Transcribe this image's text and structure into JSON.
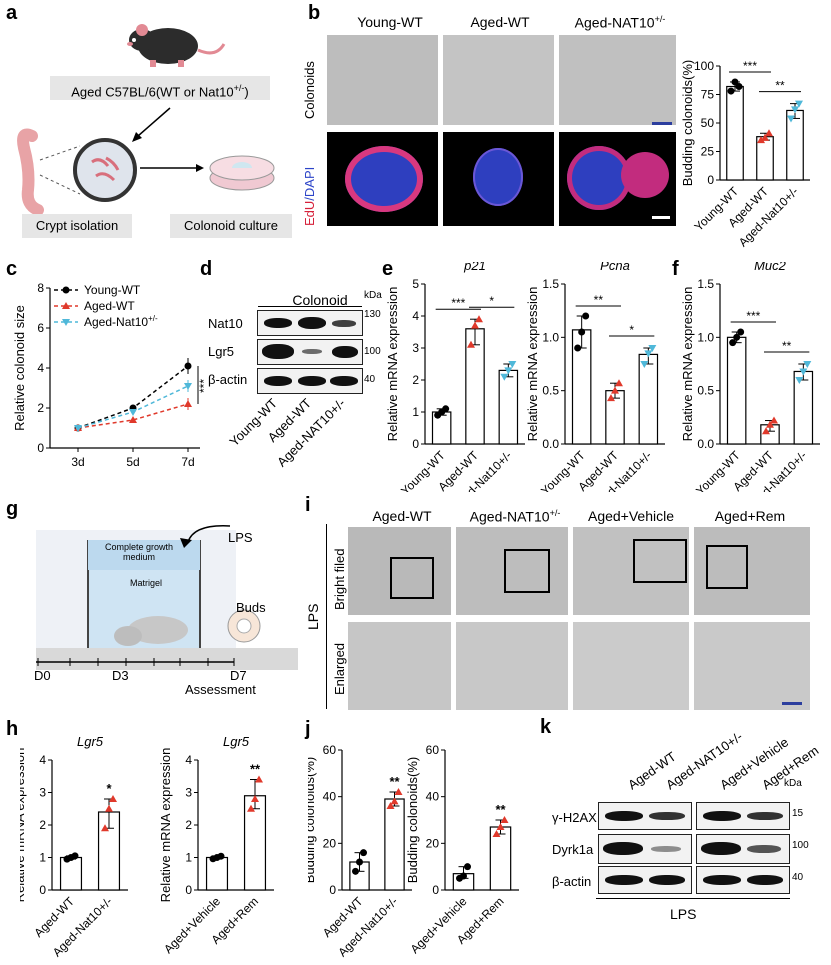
{
  "panels": {
    "a": {
      "letter": "a",
      "mouse_label": "Aged C57BL/6(WT or Nat10",
      "mouse_label_sup": "+/-",
      "mouse_label_end": ")",
      "crypt_label": "Crypt isolation",
      "culture_label": "Colonoid  culture"
    },
    "b": {
      "letter": "b",
      "cols": [
        "Young-WT",
        "Aged-WT",
        "Aged-NAT10"
      ],
      "col3_sup": "+/-",
      "row1": "Colonoids",
      "row2_edu": "EdU",
      "row2_dapi": "/DAPI"
    },
    "c": {
      "letter": "c"
    },
    "d": {
      "letter": "d",
      "header": "Colonoid",
      "kda": "kDa",
      "proteins": [
        "Nat10",
        "Lgr5",
        "β-actin"
      ],
      "markers": [
        "130",
        "100",
        "40"
      ],
      "lanes": [
        "Young-WT",
        "Aged-WT",
        "Aged-NAT10+/-"
      ]
    },
    "e": {
      "letter": "e"
    },
    "f": {
      "letter": "f"
    },
    "g": {
      "letter": "g",
      "lps": "LPS",
      "medium": "Complete growth medium",
      "matrigel": "Matrigel",
      "buds": "Buds",
      "d0": "D0",
      "d3": "D3",
      "d7": "D7",
      "assessment": "Assessment"
    },
    "i": {
      "letter": "i",
      "cols": [
        "Aged-WT",
        "Aged-NAT10",
        "Aged+Vehicle",
        "Aged+Rem"
      ],
      "col2_sup": "+/-",
      "row1": "Bright filed",
      "row2": "Enlarged",
      "side": "LPS"
    },
    "h": {
      "letter": "h"
    },
    "j": {
      "letter": "j"
    },
    "k": {
      "letter": "k",
      "lanes_left": [
        "Aged-WT",
        "Aged-NAT10+/-"
      ],
      "lanes_right": [
        "Aged+Vehicle",
        "Aged+Rem"
      ],
      "proteins": [
        "γ-H2AX",
        "Dyrk1a",
        "β-actin"
      ],
      "markers": [
        "15",
        "100",
        "40"
      ],
      "kda": "kDa",
      "footer": "LPS"
    }
  },
  "chart_data": [
    {
      "id": "b-bar",
      "type": "bar",
      "categories": [
        "Young-WT",
        "Aged-WT",
        "Aged-Nat10+/-"
      ],
      "values": [
        82,
        38,
        61
      ],
      "points": [
        [
          78,
          86,
          82
        ],
        [
          35,
          37,
          41
        ],
        [
          54,
          62,
          67
        ]
      ],
      "ylabel": "Budding colonoids(%)",
      "ylim": [
        0,
        100
      ],
      "yticks": [
        0,
        25,
        50,
        75,
        100
      ],
      "sig": [
        {
          "from": 0,
          "to": 1,
          "label": "***"
        },
        {
          "from": 1,
          "to": 2,
          "label": "**"
        }
      ],
      "colors": [
        "#000000",
        "#e0392b",
        "#4fb8d9"
      ]
    },
    {
      "id": "c-line",
      "type": "line",
      "x": [
        "3d",
        "5d",
        "7d"
      ],
      "ylabel": "Relative colonoid size",
      "ylim": [
        0,
        8
      ],
      "yticks": [
        0,
        2,
        4,
        6,
        8
      ],
      "series": [
        {
          "name": "Young-WT",
          "values": [
            1.0,
            2.0,
            4.1
          ],
          "err": [
            0.1,
            0.1,
            0.4
          ],
          "color": "#000000",
          "marker": "circle"
        },
        {
          "name": "Aged-WT",
          "values": [
            1.0,
            1.4,
            2.2
          ],
          "err": [
            0.1,
            0.1,
            0.3
          ],
          "color": "#e0392b",
          "marker": "triangle"
        },
        {
          "name": "Aged-Nat10",
          "name_sup": "+/-",
          "values": [
            1.0,
            1.8,
            3.1
          ],
          "err": [
            0.1,
            0.1,
            0.3
          ],
          "color": "#4fb8d9",
          "marker": "triangle-down"
        }
      ],
      "annotation": "***"
    },
    {
      "id": "e-p21",
      "type": "bar",
      "title": "p21",
      "categories": [
        "Young-WT",
        "Aged-WT",
        "Aged-Nat10+/-"
      ],
      "values": [
        1.0,
        3.6,
        2.3
      ],
      "points": [
        [
          0.9,
          1.0,
          1.1
        ],
        [
          3.1,
          3.7,
          3.9
        ],
        [
          2.1,
          2.3,
          2.5
        ]
      ],
      "ylabel": "Relative mRNA expression",
      "ylim": [
        0,
        5
      ],
      "yticks": [
        0,
        1,
        2,
        3,
        4,
        5
      ],
      "sig": [
        {
          "from": 0,
          "to": 1,
          "label": "***"
        },
        {
          "from": 1,
          "to": 2,
          "label": "*"
        }
      ],
      "colors": [
        "#000000",
        "#e0392b",
        "#4fb8d9"
      ]
    },
    {
      "id": "e-pcna",
      "type": "bar",
      "title": "Pcna",
      "categories": [
        "Young-WT",
        "Aged-WT",
        "Aged-Nat10+/-"
      ],
      "values": [
        1.07,
        0.5,
        0.84
      ],
      "points": [
        [
          0.9,
          1.05,
          1.2
        ],
        [
          0.43,
          0.5,
          0.57
        ],
        [
          0.75,
          0.85,
          0.9
        ]
      ],
      "ylabel": "Relative mRNA expression",
      "ylim": [
        0,
        1.5
      ],
      "yticks": [
        0.0,
        0.5,
        1.0,
        1.5
      ],
      "sig": [
        {
          "from": 0,
          "to": 1,
          "label": "**"
        },
        {
          "from": 1,
          "to": 2,
          "label": "*"
        }
      ],
      "colors": [
        "#000000",
        "#e0392b",
        "#4fb8d9"
      ]
    },
    {
      "id": "f-muc2",
      "type": "bar",
      "title": "Muc2",
      "categories": [
        "Young-WT",
        "Aged-WT",
        "Aged-Nat10+/-"
      ],
      "values": [
        1.0,
        0.18,
        0.68
      ],
      "points": [
        [
          0.95,
          1.0,
          1.05
        ],
        [
          0.12,
          0.18,
          0.22
        ],
        [
          0.6,
          0.68,
          0.75
        ]
      ],
      "ylabel": "Relative mRNA expression",
      "ylim": [
        0,
        1.5
      ],
      "yticks": [
        0.0,
        0.5,
        1.0,
        1.5
      ],
      "sig": [
        {
          "from": 0,
          "to": 1,
          "label": "***"
        },
        {
          "from": 1,
          "to": 2,
          "label": "**"
        }
      ],
      "colors": [
        "#000000",
        "#e0392b",
        "#4fb8d9"
      ]
    },
    {
      "id": "h-lgr5-a",
      "type": "bar",
      "title": "Lgr5",
      "categories": [
        "Aged-WT",
        "Aged-Nat10+/-"
      ],
      "values": [
        1.0,
        2.4
      ],
      "points": [
        [
          0.95,
          1.0,
          1.05
        ],
        [
          1.9,
          2.5,
          2.8
        ]
      ],
      "ylabel": "Relative mRNA expression",
      "ylim": [
        0,
        4
      ],
      "yticks": [
        0,
        1,
        2,
        3,
        4
      ],
      "sig_above": [
        null,
        "*"
      ],
      "colors": [
        "#000000",
        "#e0392b"
      ]
    },
    {
      "id": "h-lgr5-b",
      "type": "bar",
      "title": "Lgr5",
      "categories": [
        "Aged+Vehicle",
        "Aged+Rem"
      ],
      "values": [
        1.0,
        2.9
      ],
      "points": [
        [
          0.96,
          1.0,
          1.04
        ],
        [
          2.5,
          2.8,
          3.4
        ]
      ],
      "ylabel": "Relative mRNA expression",
      "ylim": [
        0,
        4
      ],
      "yticks": [
        0,
        1,
        2,
        3,
        4
      ],
      "sig_above": [
        null,
        "**"
      ],
      "colors": [
        "#000000",
        "#e0392b"
      ]
    },
    {
      "id": "j-a",
      "type": "bar",
      "categories": [
        "Aged-WT",
        "Aged-Nat10+/-"
      ],
      "values": [
        12,
        39
      ],
      "points": [
        [
          8,
          12,
          16
        ],
        [
          36,
          38,
          42
        ]
      ],
      "ylabel": "Budding colonoids(%)",
      "ylim": [
        0,
        60
      ],
      "yticks": [
        0,
        20,
        40,
        60
      ],
      "sig_above": [
        null,
        "**"
      ],
      "colors": [
        "#000000",
        "#e0392b"
      ]
    },
    {
      "id": "j-b",
      "type": "bar",
      "categories": [
        "Aged+Vehicle",
        "Aged+Rem"
      ],
      "values": [
        7,
        27
      ],
      "points": [
        [
          5,
          6,
          10
        ],
        [
          24,
          27,
          30
        ]
      ],
      "ylabel": "Budding colonoids(%)",
      "ylim": [
        0,
        60
      ],
      "yticks": [
        0,
        20,
        40,
        60
      ],
      "sig_above": [
        null,
        "**"
      ],
      "colors": [
        "#000000",
        "#e0392b"
      ]
    }
  ]
}
